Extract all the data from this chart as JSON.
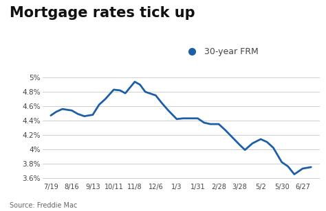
{
  "title": "Mortgage rates tick up",
  "legend_label": "30-year FRM",
  "legend_marker_color": "#1c5fa8",
  "source_text": "Source: Freddie Mac",
  "line_color": "#1c5fa8",
  "line_width": 2.0,
  "background_color": "#ffffff",
  "grid_color": "#c8c8c8",
  "title_fontsize": 15,
  "tick_fontsize": 7.5,
  "source_fontsize": 7.0,
  "legend_fontsize": 9,
  "ylim": [
    3.55,
    5.08
  ],
  "ytick_labels": [
    "3.6%",
    "3.8%",
    "4%",
    "4.2%",
    "4.4%",
    "4.6%",
    "4.8%",
    "5%"
  ],
  "ytick_values": [
    3.6,
    3.8,
    4.0,
    4.2,
    4.4,
    4.6,
    4.8,
    5.0
  ],
  "xtick_labels": [
    "7/19",
    "8/16",
    "9/13",
    "10/11",
    "11/8",
    "12/6",
    "1/3",
    "1/31",
    "2/28",
    "3/28",
    "5/2",
    "5/30",
    "6/27"
  ],
  "x_dense": [
    0,
    0.25,
    0.55,
    1.0,
    1.3,
    1.6,
    2.0,
    2.3,
    2.6,
    3.0,
    3.3,
    3.55,
    4.0,
    4.25,
    4.5,
    5.0,
    5.3,
    5.6,
    6.0,
    6.3,
    6.6,
    7.0,
    7.3,
    7.6,
    8.0,
    8.3,
    8.6,
    9.0,
    9.25,
    9.6,
    10.0,
    10.3,
    10.6,
    11.0,
    11.3,
    11.6,
    12.0,
    12.4
  ],
  "y_dense": [
    4.47,
    4.52,
    4.56,
    4.54,
    4.49,
    4.46,
    4.48,
    4.62,
    4.7,
    4.83,
    4.82,
    4.78,
    4.94,
    4.9,
    4.8,
    4.75,
    4.64,
    4.54,
    4.42,
    4.43,
    4.43,
    4.43,
    4.37,
    4.35,
    4.35,
    4.27,
    4.18,
    4.06,
    3.99,
    4.08,
    4.14,
    4.1,
    4.02,
    3.82,
    3.76,
    3.65,
    3.73,
    3.75
  ],
  "xlim": [
    -0.4,
    12.8
  ]
}
